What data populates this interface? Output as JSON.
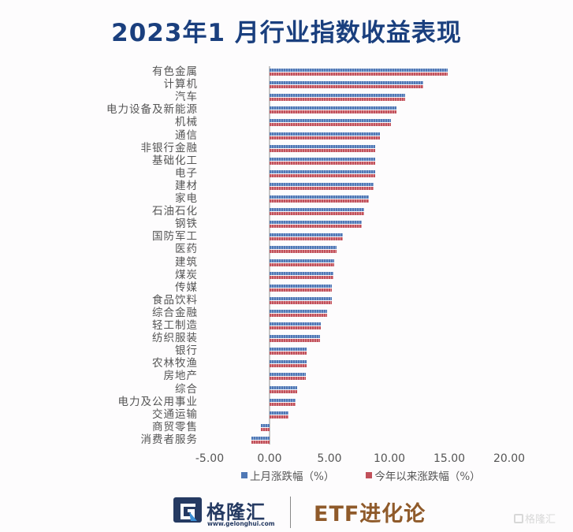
{
  "title": "2023年1 月行业指数收益表现",
  "chart_data": {
    "type": "bar",
    "orientation": "horizontal",
    "title": "2023年1 月行业指数收益表现",
    "xlabel": "",
    "ylabel": "",
    "xlim": [
      -5,
      20
    ],
    "x_ticks": [
      "-5.00",
      "0.00",
      "5.00",
      "10.00",
      "15.00",
      "20.00"
    ],
    "grid": false,
    "legend_position": "bottom",
    "categories": [
      "有色金属",
      "计算机",
      "汽车",
      "电力设备及新能源",
      "机械",
      "通信",
      "非银行金融",
      "基础化工",
      "电子",
      "建材",
      "家电",
      "石油石化",
      "钢铁",
      "国防军工",
      "医药",
      "建筑",
      "煤炭",
      "传媒",
      "食品饮料",
      "综合金融",
      "轻工制造",
      "纺织服装",
      "银行",
      "农林牧渔",
      "房地产",
      "综合",
      "电力及公用事业",
      "交通运输",
      "商贸零售",
      "消费者服务"
    ],
    "series": [
      {
        "name": "上月涨跌幅（%）",
        "color": "#4f78b5",
        "values": [
          14.9,
          12.8,
          11.3,
          10.6,
          10.1,
          9.2,
          8.8,
          8.8,
          8.8,
          8.7,
          8.3,
          7.9,
          7.7,
          6.1,
          5.6,
          5.4,
          5.3,
          5.2,
          5.2,
          4.8,
          4.3,
          4.2,
          3.1,
          3.1,
          3.0,
          2.3,
          2.2,
          1.6,
          -0.7,
          -1.5
        ]
      },
      {
        "name": "今年以来涨跌幅（%）",
        "color": "#c1505a",
        "values": [
          14.9,
          12.8,
          11.3,
          10.6,
          10.1,
          9.2,
          8.8,
          8.8,
          8.8,
          8.7,
          8.3,
          7.9,
          7.7,
          6.1,
          5.6,
          5.4,
          5.3,
          5.2,
          5.2,
          4.8,
          4.3,
          4.2,
          3.1,
          3.1,
          3.0,
          2.3,
          2.2,
          1.6,
          -0.7,
          -1.5
        ]
      }
    ]
  },
  "footer": {
    "logo_text": "格隆汇",
    "logo_url": "www.gelonghui.com",
    "column_name": "ETF进化论",
    "watermark": "格隆汇"
  }
}
